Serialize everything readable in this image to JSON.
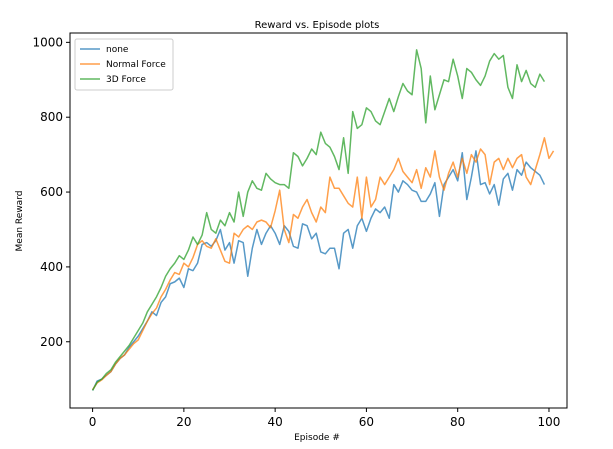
{
  "chart_data": {
    "type": "line",
    "title": "Reward vs. Episode plots",
    "xlabel": "Episode #",
    "ylabel": "Mean Reward",
    "xlim": [
      -4.95,
      103.95
    ],
    "ylim": [
      23,
      1025
    ],
    "xticks": [
      0,
      20,
      40,
      60,
      80,
      100
    ],
    "yticks": [
      200,
      400,
      600,
      800,
      1000
    ],
    "grid": false,
    "legend_position": "top-left",
    "series": [
      {
        "name": "none",
        "color": "#1f77b4",
        "values": [
          70,
          95,
          100,
          110,
          120,
          140,
          155,
          165,
          185,
          200,
          215,
          235,
          255,
          280,
          270,
          305,
          320,
          355,
          360,
          370,
          345,
          395,
          390,
          410,
          460,
          465,
          455,
          470,
          500,
          445,
          465,
          410,
          470,
          465,
          375,
          450,
          500,
          460,
          490,
          510,
          490,
          460,
          510,
          495,
          455,
          450,
          515,
          510,
          475,
          490,
          440,
          435,
          450,
          450,
          395,
          490,
          500,
          450,
          510,
          530,
          495,
          530,
          555,
          545,
          560,
          530,
          620,
          600,
          630,
          620,
          605,
          600,
          575,
          575,
          595,
          625,
          535,
          620,
          640,
          660,
          630,
          705,
          580,
          640,
          710,
          620,
          625,
          595,
          620,
          565,
          635,
          650,
          605,
          660,
          645,
          680,
          665,
          655,
          645,
          620
        ]
      },
      {
        "name": "Normal Force",
        "color": "#ff7f0e",
        "values": [
          72,
          90,
          98,
          110,
          120,
          140,
          155,
          165,
          180,
          195,
          205,
          230,
          255,
          275,
          290,
          320,
          340,
          365,
          385,
          380,
          410,
          400,
          425,
          460,
          470,
          455,
          450,
          475,
          445,
          415,
          410,
          490,
          480,
          500,
          510,
          500,
          520,
          525,
          520,
          505,
          550,
          605,
          500,
          465,
          540,
          530,
          560,
          580,
          545,
          520,
          560,
          545,
          640,
          610,
          610,
          590,
          570,
          560,
          640,
          530,
          640,
          560,
          580,
          640,
          620,
          640,
          660,
          690,
          655,
          640,
          625,
          660,
          610,
          665,
          640,
          710,
          640,
          605,
          650,
          680,
          640,
          690,
          650,
          700,
          680,
          715,
          700,
          620,
          680,
          690,
          660,
          690,
          665,
          690,
          700,
          640,
          620,
          660,
          700,
          745,
          690,
          710
        ]
      },
      {
        "name": "3D Force",
        "color": "#2ca02c",
        "values": [
          70,
          92,
          100,
          115,
          125,
          145,
          160,
          175,
          190,
          210,
          230,
          250,
          280,
          300,
          320,
          345,
          375,
          395,
          410,
          430,
          420,
          445,
          480,
          460,
          485,
          545,
          500,
          490,
          525,
          510,
          545,
          520,
          600,
          535,
          600,
          630,
          610,
          605,
          650,
          635,
          625,
          620,
          620,
          610,
          705,
          695,
          670,
          690,
          715,
          700,
          760,
          730,
          720,
          695,
          660,
          745,
          650,
          815,
          770,
          780,
          825,
          815,
          790,
          780,
          815,
          850,
          815,
          855,
          890,
          870,
          860,
          980,
          930,
          785,
          910,
          820,
          860,
          900,
          895,
          955,
          910,
          850,
          930,
          920,
          900,
          885,
          910,
          950,
          970,
          955,
          965,
          880,
          850,
          940,
          895,
          925,
          890,
          880,
          915,
          895
        ]
      }
    ]
  }
}
